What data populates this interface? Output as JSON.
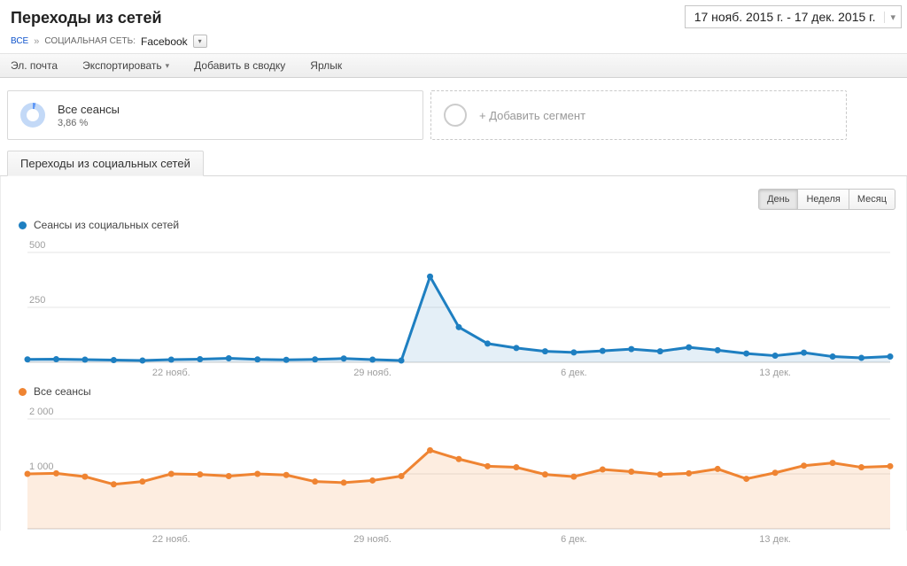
{
  "page": {
    "title": "Переходы из сетей",
    "date_range": "17 нояб. 2015 г. - 17 дек. 2015 г."
  },
  "breadcrumb": {
    "all": "ВСЕ",
    "separator": "»",
    "segment_label": "СОЦИАЛЬНАЯ СЕТЬ:",
    "segment_value": "Facebook"
  },
  "toolbar": {
    "items": [
      "Эл. почта",
      "Экспортировать",
      "Добавить в сводку",
      "Ярлык"
    ]
  },
  "segments": {
    "all_sessions": {
      "title": "Все сеансы",
      "percent": "3,86 %"
    },
    "add_segment_label": "+ Добавить сегмент"
  },
  "tabs": {
    "active": "Переходы из социальных сетей"
  },
  "granularity": {
    "options": [
      "День",
      "Неделя",
      "Месяц"
    ],
    "selected": "День"
  },
  "icons": {
    "caret_down": "▾"
  },
  "chart_data": [
    {
      "type": "line",
      "title": "Сеансы из социальных сетей",
      "color": "#1e7fc1",
      "fill": "rgba(30,127,193,0.12)",
      "ylim": [
        0,
        500
      ],
      "yticks": [
        {
          "value": 250,
          "label": "250"
        },
        {
          "value": 500,
          "label": "500"
        }
      ],
      "xticks": [
        {
          "index": 5,
          "label": "22 нояб."
        },
        {
          "index": 12,
          "label": "29 нояб."
        },
        {
          "index": 19,
          "label": "6 дек."
        },
        {
          "index": 26,
          "label": "13 дек."
        }
      ],
      "values": [
        13,
        14,
        12,
        10,
        8,
        12,
        14,
        18,
        13,
        11,
        13,
        17,
        12,
        8,
        390,
        160,
        85,
        65,
        50,
        45,
        52,
        60,
        50,
        68,
        55,
        40,
        30,
        44,
        26,
        20,
        26
      ]
    },
    {
      "type": "line",
      "title": "Все сеансы",
      "color": "#ef8432",
      "fill": "rgba(239,132,50,0.15)",
      "ylim": [
        0,
        2000
      ],
      "yticks": [
        {
          "value": 1000,
          "label": "1 000"
        },
        {
          "value": 2000,
          "label": "2 000"
        }
      ],
      "xticks": [
        {
          "index": 5,
          "label": "22 нояб."
        },
        {
          "index": 12,
          "label": "29 нояб."
        },
        {
          "index": 19,
          "label": "6 дек."
        },
        {
          "index": 26,
          "label": "13 дек."
        }
      ],
      "values": [
        1000,
        1010,
        950,
        810,
        860,
        1000,
        990,
        960,
        1000,
        980,
        860,
        840,
        880,
        960,
        1430,
        1270,
        1140,
        1120,
        990,
        950,
        1080,
        1040,
        990,
        1010,
        1090,
        910,
        1020,
        1150,
        1200,
        1120,
        1140
      ]
    }
  ]
}
